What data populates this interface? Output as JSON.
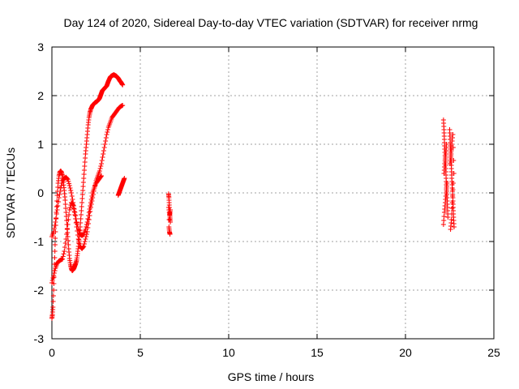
{
  "chart_data": {
    "type": "scatter",
    "title": "Day 124 of 2020, Sidereal Day-to-day VTEC variation (SDTVAR) for receiver nrmg",
    "xlabel": "GPS time / hours",
    "ylabel": "SDTVAR / TECUs",
    "xlim": [
      0,
      25
    ],
    "ylim": [
      -3,
      3
    ],
    "xticks": [
      "0",
      "5",
      "10",
      "15",
      "20",
      "25"
    ],
    "yticks": [
      "3",
      "2",
      "1",
      "0",
      "-1",
      "-2",
      "-3"
    ],
    "grid": true,
    "marker": "plus",
    "color": "#ff0000",
    "series": [
      {
        "x": [
          0.0,
          0.03,
          0.06,
          0.1,
          0.13,
          0.17,
          0.2,
          0.25,
          0.3,
          0.35,
          0.4,
          0.45,
          0.5,
          0.55,
          0.6,
          0.65,
          0.7,
          0.75,
          0.8,
          0.85,
          0.9,
          0.95,
          1.0,
          1.05,
          1.1,
          1.15,
          1.2,
          1.25,
          1.3,
          1.35,
          1.4,
          1.45,
          1.5,
          1.55,
          1.6,
          1.65,
          1.7,
          1.75,
          1.8,
          1.85,
          1.9,
          1.95,
          2.0,
          2.05,
          2.1,
          2.15,
          2.2,
          2.25,
          2.3,
          2.35,
          2.4,
          2.45,
          2.5,
          2.55,
          2.6,
          2.65,
          2.7,
          2.75,
          2.8,
          2.85,
          2.9,
          2.95,
          3.0,
          3.05,
          3.1,
          3.15,
          3.2,
          3.25,
          3.3,
          3.35,
          3.4,
          3.45,
          3.5,
          3.55,
          3.6,
          3.65,
          3.7,
          3.75,
          3.8,
          3.85,
          3.9,
          3.95,
          4.0
        ],
        "y": [
          -2.58,
          -2.5,
          -2.35,
          -2.0,
          -1.6,
          -1.2,
          -0.8,
          -0.4,
          -0.05,
          0.2,
          0.35,
          0.43,
          0.45,
          0.42,
          0.35,
          0.22,
          0.05,
          -0.15,
          -0.4,
          -0.65,
          -0.9,
          -1.15,
          -1.35,
          -1.48,
          -1.56,
          -1.6,
          -1.58,
          -1.55,
          -1.5,
          -1.45,
          -1.38,
          -1.25,
          -1.1,
          -0.9,
          -0.7,
          -0.45,
          -0.2,
          0.05,
          0.3,
          0.55,
          0.8,
          1.0,
          1.2,
          1.4,
          1.55,
          1.65,
          1.72,
          1.76,
          1.8,
          1.82,
          1.84,
          1.86,
          1.87,
          1.88,
          1.9,
          1.92,
          1.95,
          2.0,
          2.05,
          2.1,
          2.12,
          2.14,
          2.16,
          2.18,
          2.2,
          2.25,
          2.3,
          2.34,
          2.38,
          2.4,
          2.41,
          2.42,
          2.43,
          2.42,
          2.41,
          2.4,
          2.38,
          2.36,
          2.33,
          2.3,
          2.28,
          2.25,
          2.22
        ]
      },
      {
        "x": [
          0.0,
          0.1,
          0.2,
          0.3,
          0.4,
          0.5,
          0.6,
          0.7,
          0.8,
          0.9,
          1.0,
          1.1,
          1.2,
          1.3,
          1.4,
          1.5,
          1.6,
          1.7,
          1.8,
          1.9,
          2.0,
          2.1,
          2.2,
          2.3,
          2.4,
          2.5,
          2.6,
          2.7,
          2.8,
          2.9,
          3.0,
          3.1,
          3.2,
          3.3,
          3.4,
          3.5,
          3.6,
          3.7,
          3.8,
          3.9,
          4.0
        ],
        "y": [
          -1.85,
          -1.7,
          -1.55,
          -1.45,
          -1.4,
          -1.38,
          -1.36,
          -1.2,
          -0.95,
          -0.65,
          -0.35,
          -0.2,
          -0.25,
          -0.45,
          -0.7,
          -0.95,
          -1.1,
          -1.15,
          -1.1,
          -0.95,
          -0.8,
          -0.55,
          -0.3,
          -0.1,
          0.1,
          0.25,
          0.35,
          0.45,
          0.6,
          0.8,
          1.0,
          1.2,
          1.35,
          1.45,
          1.55,
          1.6,
          1.65,
          1.7,
          1.75,
          1.78,
          1.8
        ]
      },
      {
        "x": [
          0.0,
          0.1,
          0.2,
          0.3,
          0.4,
          0.5,
          0.6,
          0.7,
          0.8,
          0.9,
          1.0,
          1.1,
          1.2,
          1.3,
          1.4,
          1.5,
          1.6,
          1.7,
          1.8,
          1.9,
          2.0,
          2.1,
          2.2,
          2.3,
          2.4,
          2.5,
          2.6,
          2.7,
          2.8
        ],
        "y": [
          -0.9,
          -0.8,
          -0.6,
          -0.35,
          -0.1,
          0.1,
          0.25,
          0.3,
          0.32,
          0.28,
          0.15,
          0.0,
          -0.2,
          -0.4,
          -0.6,
          -0.75,
          -0.85,
          -0.88,
          -0.85,
          -0.75,
          -0.6,
          -0.4,
          -0.2,
          0.0,
          0.1,
          0.2,
          0.25,
          0.3,
          0.35
        ]
      },
      {
        "x": [
          3.75,
          3.8,
          3.85,
          3.9,
          3.95,
          4.0,
          4.05,
          4.1
        ],
        "y": [
          -0.05,
          0.0,
          0.05,
          0.1,
          0.15,
          0.2,
          0.25,
          0.3
        ]
      },
      {
        "x": [
          6.6,
          6.62,
          6.64,
          6.66,
          6.68,
          6.7,
          6.62,
          6.65,
          6.68,
          6.6,
          6.66,
          6.7,
          6.63
        ],
        "y": [
          -0.02,
          -0.1,
          -0.25,
          -0.4,
          -0.5,
          -0.6,
          -0.7,
          -0.8,
          -0.85,
          -0.3,
          -0.45,
          -0.35,
          -0.55
        ]
      },
      {
        "x": [
          22.15,
          22.18,
          22.2,
          22.22,
          22.25,
          22.28,
          22.3,
          22.32,
          22.35,
          22.38,
          22.4,
          22.15,
          22.2,
          22.25,
          22.3,
          22.35,
          22.18,
          22.22,
          22.28,
          22.32
        ],
        "y": [
          1.5,
          1.3,
          1.1,
          0.9,
          0.7,
          0.5,
          0.3,
          0.1,
          -0.1,
          -0.3,
          -0.5,
          -0.65,
          -0.4,
          -0.2,
          0.0,
          0.2,
          0.4,
          0.6,
          0.8,
          1.0
        ]
      },
      {
        "x": [
          22.5,
          22.52,
          22.55,
          22.58,
          22.6,
          22.62,
          22.65,
          22.68,
          22.7,
          22.72,
          22.75,
          22.55,
          22.6,
          22.65,
          22.7,
          22.52,
          22.58,
          22.62,
          22.68,
          22.74
        ],
        "y": [
          1.3,
          1.1,
          0.9,
          0.7,
          0.5,
          0.3,
          0.1,
          -0.1,
          -0.3,
          -0.5,
          -0.7,
          -0.75,
          -0.55,
          -0.2,
          0.2,
          0.6,
          0.8,
          1.0,
          1.2,
          0.4
        ]
      }
    ]
  }
}
